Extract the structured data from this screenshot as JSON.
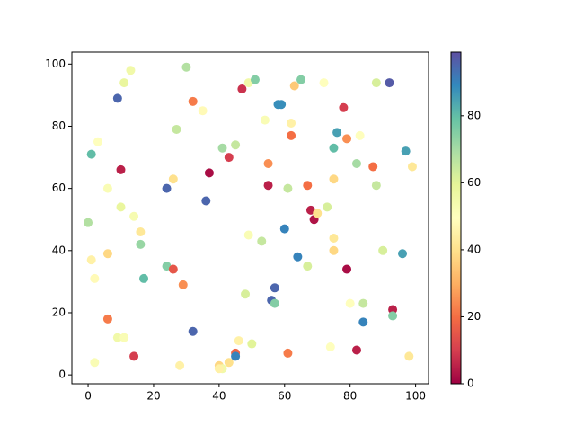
{
  "chart_data": {
    "type": "scatter",
    "colormap": "Spectral",
    "x": [
      13,
      30,
      11,
      9,
      32,
      35,
      47,
      49,
      51,
      65,
      63,
      72,
      88,
      92,
      58,
      59,
      54,
      62,
      78,
      76,
      79,
      83,
      75,
      97,
      27,
      41,
      45,
      43,
      62,
      3,
      1,
      10,
      37,
      55,
      82,
      87,
      99,
      6,
      26,
      24,
      55,
      61,
      67,
      75,
      88,
      10,
      14,
      36,
      73,
      68,
      69,
      70,
      0,
      16,
      16,
      49,
      53,
      60,
      75,
      75,
      1,
      6,
      90,
      96,
      64,
      67,
      79,
      24,
      26,
      17,
      2,
      29,
      57,
      56,
      57,
      48,
      84,
      93,
      93,
      80,
      84,
      6,
      32,
      9,
      11,
      46,
      50,
      74,
      82,
      14,
      45,
      45,
      61,
      98,
      2,
      28,
      40,
      43,
      41,
      40
    ],
    "values": [
      98,
      99,
      94,
      89,
      88,
      85,
      92,
      94,
      95,
      95,
      93,
      94,
      94,
      94,
      87,
      87,
      82,
      81,
      86,
      78,
      76,
      77,
      73,
      72,
      79,
      73,
      74,
      70,
      77,
      75,
      71,
      66,
      65,
      68,
      68,
      67,
      67,
      60,
      63,
      60,
      61,
      60,
      61,
      63,
      61,
      54,
      51,
      56,
      54,
      53,
      50,
      52,
      49,
      46,
      42,
      45,
      43,
      47,
      44,
      40,
      37,
      39,
      40,
      39,
      38,
      35,
      34,
      35,
      34,
      31,
      31,
      29,
      28,
      24,
      23,
      26,
      23,
      21,
      19,
      23,
      17,
      18,
      14,
      12,
      12,
      11,
      10,
      9,
      8,
      6,
      7,
      6,
      7,
      6,
      4,
      3,
      3,
      4,
      2,
      2
    ],
    "color_values": [
      55,
      68,
      58,
      95,
      22,
      48,
      8,
      55,
      75,
      75,
      35,
      50,
      62,
      97,
      88,
      88,
      52,
      45,
      10,
      85,
      25,
      50,
      80,
      85,
      65,
      70,
      65,
      10,
      20,
      50,
      80,
      5,
      2,
      25,
      70,
      20,
      42,
      52,
      40,
      95,
      5,
      65,
      20,
      38,
      65,
      58,
      53,
      95,
      62,
      5,
      3,
      40,
      68,
      42,
      72,
      52,
      65,
      90,
      42,
      38,
      45,
      38,
      62,
      85,
      90,
      62,
      2,
      75,
      15,
      80,
      48,
      25,
      95,
      95,
      75,
      62,
      65,
      5,
      75,
      50,
      90,
      22,
      95,
      55,
      52,
      45,
      60,
      50,
      5,
      10,
      18,
      90,
      22,
      42,
      52,
      45,
      38,
      40,
      55,
      45
    ],
    "xlim": [
      -4.95,
      103.95
    ],
    "ylim": [
      -2.85,
      103.85
    ],
    "xticks": [
      0,
      20,
      40,
      60,
      80,
      100
    ],
    "yticks": [
      0,
      20,
      40,
      60,
      80,
      100
    ],
    "clim": [
      0,
      99
    ],
    "cticks": [
      0,
      20,
      40,
      60,
      80
    ]
  }
}
